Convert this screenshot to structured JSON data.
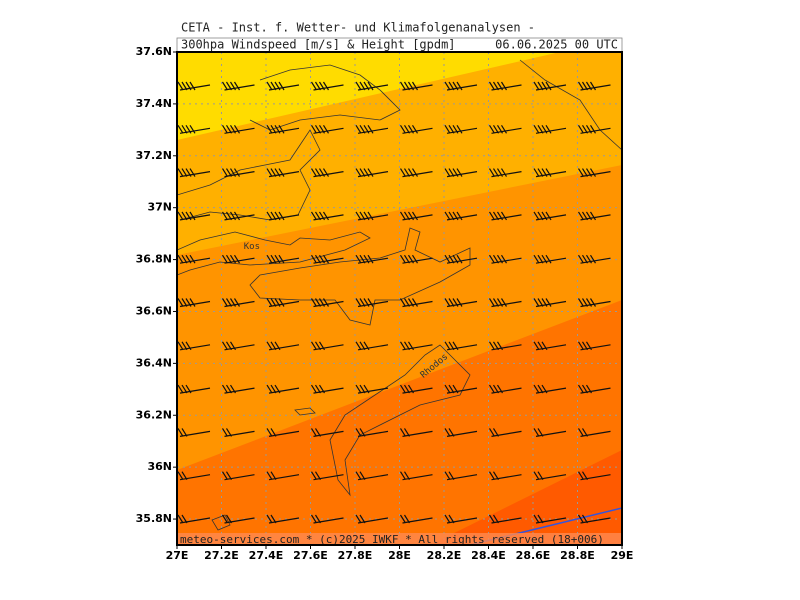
{
  "header": {
    "title": "CETA - Inst. f. Wetter- und Klimafolgenanalysen -",
    "product": "300hpa_Windspeed_[m/s]_&_Height_[gpdm]",
    "valid_time": "06.06.2025 00 UTC"
  },
  "axes": {
    "lat_ticks": [
      {
        "value": 37.6,
        "label": "37.6N"
      },
      {
        "value": 37.4,
        "label": "37.4N"
      },
      {
        "value": 37.2,
        "label": "37.2N"
      },
      {
        "value": 37,
        "label": "37N"
      },
      {
        "value": 36.8,
        "label": "36.8N"
      },
      {
        "value": 36.6,
        "label": "36.6N"
      },
      {
        "value": 36.4,
        "label": "36.4N"
      },
      {
        "value": 36.2,
        "label": "36.2N"
      },
      {
        "value": 36,
        "label": "36N"
      },
      {
        "value": 35.8,
        "label": "35.8N"
      }
    ],
    "lon_ticks": [
      {
        "value": 27,
        "label": "27E"
      },
      {
        "value": 27.2,
        "label": "27.2E"
      },
      {
        "value": 27.4,
        "label": "27.4E"
      },
      {
        "value": 27.6,
        "label": "27.6E"
      },
      {
        "value": 27.8,
        "label": "27.8E"
      },
      {
        "value": 28,
        "label": "28E"
      },
      {
        "value": 28.2,
        "label": "28.2E"
      },
      {
        "value": 28.4,
        "label": "28.4E"
      },
      {
        "value": 28.6,
        "label": "28.6E"
      },
      {
        "value": 28.8,
        "label": "28.8E"
      },
      {
        "value": 29,
        "label": "29E"
      }
    ],
    "lat_range": [
      35.7,
      37.6
    ],
    "lon_range": [
      27,
      29
    ]
  },
  "places": [
    {
      "name": "Kos",
      "lon": 27.3,
      "lat": 36.85
    },
    {
      "name": "Rhodos",
      "lon": 28.1,
      "lat": 36.35
    }
  ],
  "footer": "meteo-services.com * (c)2025 IWKF * All rights reserved (18+006)"
}
